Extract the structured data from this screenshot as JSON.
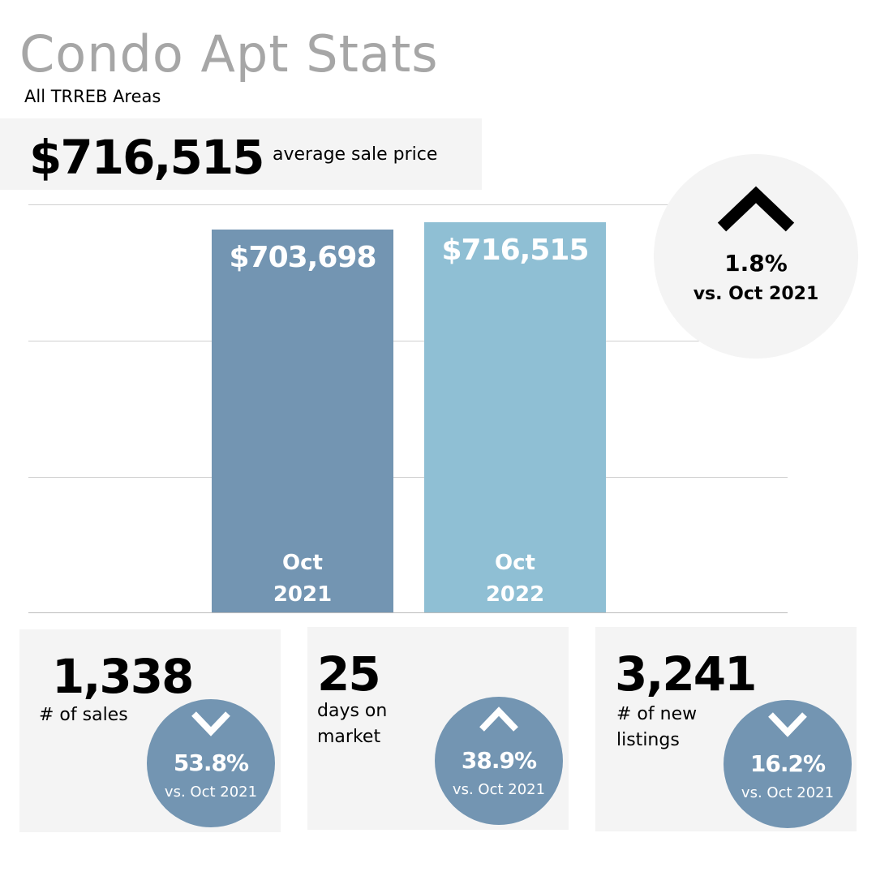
{
  "header": {
    "title": "Condo Apt Stats",
    "subtitle": "All TRREB Areas"
  },
  "headline": {
    "value": "$716,515",
    "label": "average sale price"
  },
  "change_badge": {
    "direction": "up",
    "percent": "1.8%",
    "comparison": "vs. Oct 2021"
  },
  "chart_data": {
    "type": "bar",
    "title": "",
    "categories": [
      "Oct 2021",
      "Oct 2022"
    ],
    "category_lines": [
      [
        "Oct",
        "2021"
      ],
      [
        "Oct",
        "2022"
      ]
    ],
    "values": [
      703698,
      716515
    ],
    "value_labels": [
      "$703,698",
      "$716,515"
    ],
    "colors": [
      "#7395b2",
      "#8fbfd4"
    ],
    "xlabel": "",
    "ylabel": "",
    "ylim": [
      0,
      750000
    ],
    "grid": true
  },
  "stats": [
    {
      "value": "1,338",
      "label_lines": [
        "# of sales"
      ],
      "direction": "down",
      "percent": "53.8%",
      "comparison": "vs. Oct 2021"
    },
    {
      "value": "25",
      "label_lines": [
        "days on",
        "market"
      ],
      "direction": "up",
      "percent": "38.9%",
      "comparison": "vs. Oct 2021"
    },
    {
      "value": "3,241",
      "label_lines": [
        "# of new",
        "listings"
      ],
      "direction": "down",
      "percent": "16.2%",
      "comparison": "vs. Oct 2021"
    }
  ]
}
